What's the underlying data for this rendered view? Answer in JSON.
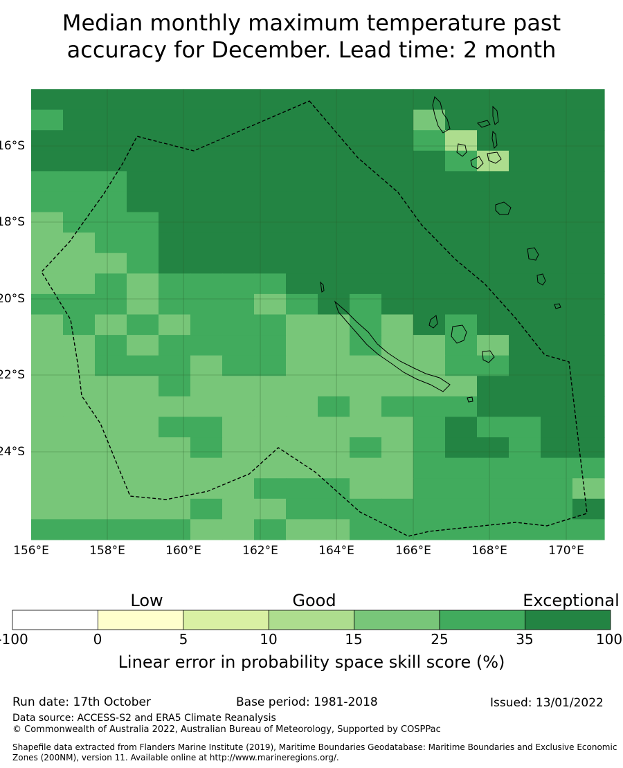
{
  "title_line1": "Median monthly maximum temperature past",
  "title_line2": "accuracy for December. Lead time: 2 month",
  "map": {
    "lon_ticks": [
      "156°E",
      "158°E",
      "160°E",
      "162°E",
      "164°E",
      "166°E",
      "168°E",
      "170°E"
    ],
    "lat_ticks": [
      "16°S",
      "18°S",
      "20°S",
      "22°S",
      "24°S"
    ],
    "lon_range": [
      156,
      171
    ],
    "lat_range": [
      -26.3,
      -14.5
    ],
    "grid": true,
    "grid_bounds_lon": [
      156.0,
      171.0
    ],
    "grid_bounds_lat": [
      -26.3,
      -14.5
    ]
  },
  "colorbar": {
    "category_labels": [
      "Low",
      "Good",
      "Exceptional"
    ],
    "tick_labels": [
      "-100",
      "0",
      "5",
      "10",
      "15",
      "25",
      "35",
      "100"
    ],
    "colors": [
      "#ffffff",
      "#ffffcc",
      "#d9f0a3",
      "#addd8e",
      "#78c679",
      "#41ab5d",
      "#238443"
    ],
    "title": "Linear error in probability space skill score (%)"
  },
  "chart_data": {
    "type": "heatmap",
    "title": "Median monthly maximum temperature past accuracy for December. Lead time: 2 month",
    "xlabel": "",
    "ylabel": "",
    "xlim": [
      156,
      171
    ],
    "ylim": [
      -26.3,
      -14.5
    ],
    "cell_deg": 0.833,
    "class_names": [
      "10-15",
      "15-25",
      "25-35",
      "35-100"
    ],
    "class_colors": [
      "#addd8e",
      "#78c679",
      "#41ab5d",
      "#238443"
    ],
    "cells": [
      [
        3,
        3,
        3,
        3,
        3,
        3,
        3,
        3,
        3,
        3,
        3,
        3,
        3,
        3,
        3,
        3,
        3,
        3
      ],
      [
        2,
        3,
        3,
        3,
        3,
        3,
        3,
        3,
        3,
        3,
        3,
        3,
        1,
        3,
        3,
        3,
        3,
        3
      ],
      [
        3,
        3,
        3,
        3,
        3,
        3,
        3,
        3,
        3,
        3,
        3,
        3,
        2,
        0,
        3,
        3,
        3,
        3
      ],
      [
        3,
        3,
        3,
        3,
        3,
        3,
        3,
        3,
        3,
        3,
        3,
        3,
        3,
        2,
        0,
        3,
        3,
        3
      ],
      [
        2,
        2,
        2,
        3,
        3,
        3,
        3,
        3,
        3,
        3,
        3,
        3,
        3,
        3,
        3,
        3,
        3,
        3
      ],
      [
        2,
        2,
        2,
        3,
        3,
        3,
        3,
        3,
        3,
        3,
        3,
        3,
        3,
        3,
        3,
        3,
        3,
        3
      ],
      [
        1,
        2,
        2,
        2,
        3,
        3,
        3,
        3,
        3,
        3,
        3,
        3,
        3,
        3,
        3,
        3,
        3,
        3
      ],
      [
        1,
        1,
        2,
        2,
        3,
        3,
        3,
        3,
        3,
        3,
        3,
        3,
        3,
        3,
        3,
        3,
        3,
        3
      ],
      [
        1,
        1,
        1,
        2,
        3,
        3,
        3,
        3,
        3,
        3,
        3,
        3,
        3,
        3,
        3,
        3,
        3,
        3
      ],
      [
        1,
        1,
        2,
        1,
        2,
        2,
        2,
        2,
        3,
        3,
        3,
        3,
        3,
        3,
        3,
        3,
        3,
        3
      ],
      [
        2,
        2,
        2,
        1,
        2,
        2,
        2,
        1,
        2,
        3,
        2,
        3,
        3,
        3,
        3,
        3,
        3,
        3
      ],
      [
        1,
        2,
        1,
        2,
        1,
        2,
        2,
        2,
        1,
        1,
        2,
        1,
        3,
        2,
        3,
        3,
        3,
        3
      ],
      [
        1,
        1,
        2,
        1,
        2,
        2,
        2,
        2,
        1,
        1,
        2,
        1,
        1,
        2,
        1,
        3,
        3,
        3
      ],
      [
        1,
        1,
        2,
        2,
        2,
        1,
        2,
        2,
        1,
        1,
        1,
        1,
        1,
        2,
        2,
        3,
        3,
        3
      ],
      [
        1,
        1,
        1,
        1,
        2,
        1,
        1,
        1,
        1,
        1,
        1,
        1,
        1,
        1,
        3,
        3,
        3,
        3
      ],
      [
        1,
        1,
        1,
        1,
        1,
        1,
        1,
        1,
        1,
        2,
        1,
        2,
        2,
        2,
        3,
        3,
        3,
        3
      ],
      [
        1,
        1,
        1,
        1,
        2,
        2,
        1,
        1,
        1,
        1,
        1,
        1,
        2,
        3,
        2,
        2,
        3,
        3
      ],
      [
        1,
        1,
        1,
        1,
        1,
        2,
        1,
        1,
        1,
        1,
        2,
        1,
        2,
        3,
        3,
        2,
        3,
        3
      ],
      [
        1,
        1,
        1,
        1,
        1,
        1,
        1,
        1,
        1,
        1,
        1,
        1,
        2,
        2,
        2,
        2,
        2,
        2
      ],
      [
        1,
        1,
        1,
        1,
        1,
        1,
        1,
        2,
        2,
        2,
        1,
        1,
        2,
        2,
        2,
        2,
        2,
        1
      ],
      [
        1,
        1,
        1,
        1,
        1,
        2,
        1,
        1,
        2,
        2,
        2,
        2,
        2,
        2,
        2,
        2,
        2,
        3
      ],
      [
        2,
        2,
        2,
        2,
        2,
        1,
        1,
        2,
        1,
        1,
        2,
        2,
        2,
        2,
        2,
        2,
        2,
        2
      ]
    ]
  },
  "footer": {
    "run_date": "Run date: 17th October",
    "base_period": "Base period: 1981-2018",
    "issued": "Issued: 13/01/2022",
    "data_source": "Data source: ACCESS-S2 and ERA5 Climate Reanalysis",
    "copyright": "© Commonwealth of Australia 2022, Australian Bureau of Meteorology, Supported by COSPPac",
    "shapefile": "Shapefile data extracted from Flanders Marine Institute (2019), Maritime Boundaries Geodatabase: Maritime Boundaries and Exclusive Economic Zones (200NM), version 11. Available online at http://www.marineregions.org/."
  }
}
